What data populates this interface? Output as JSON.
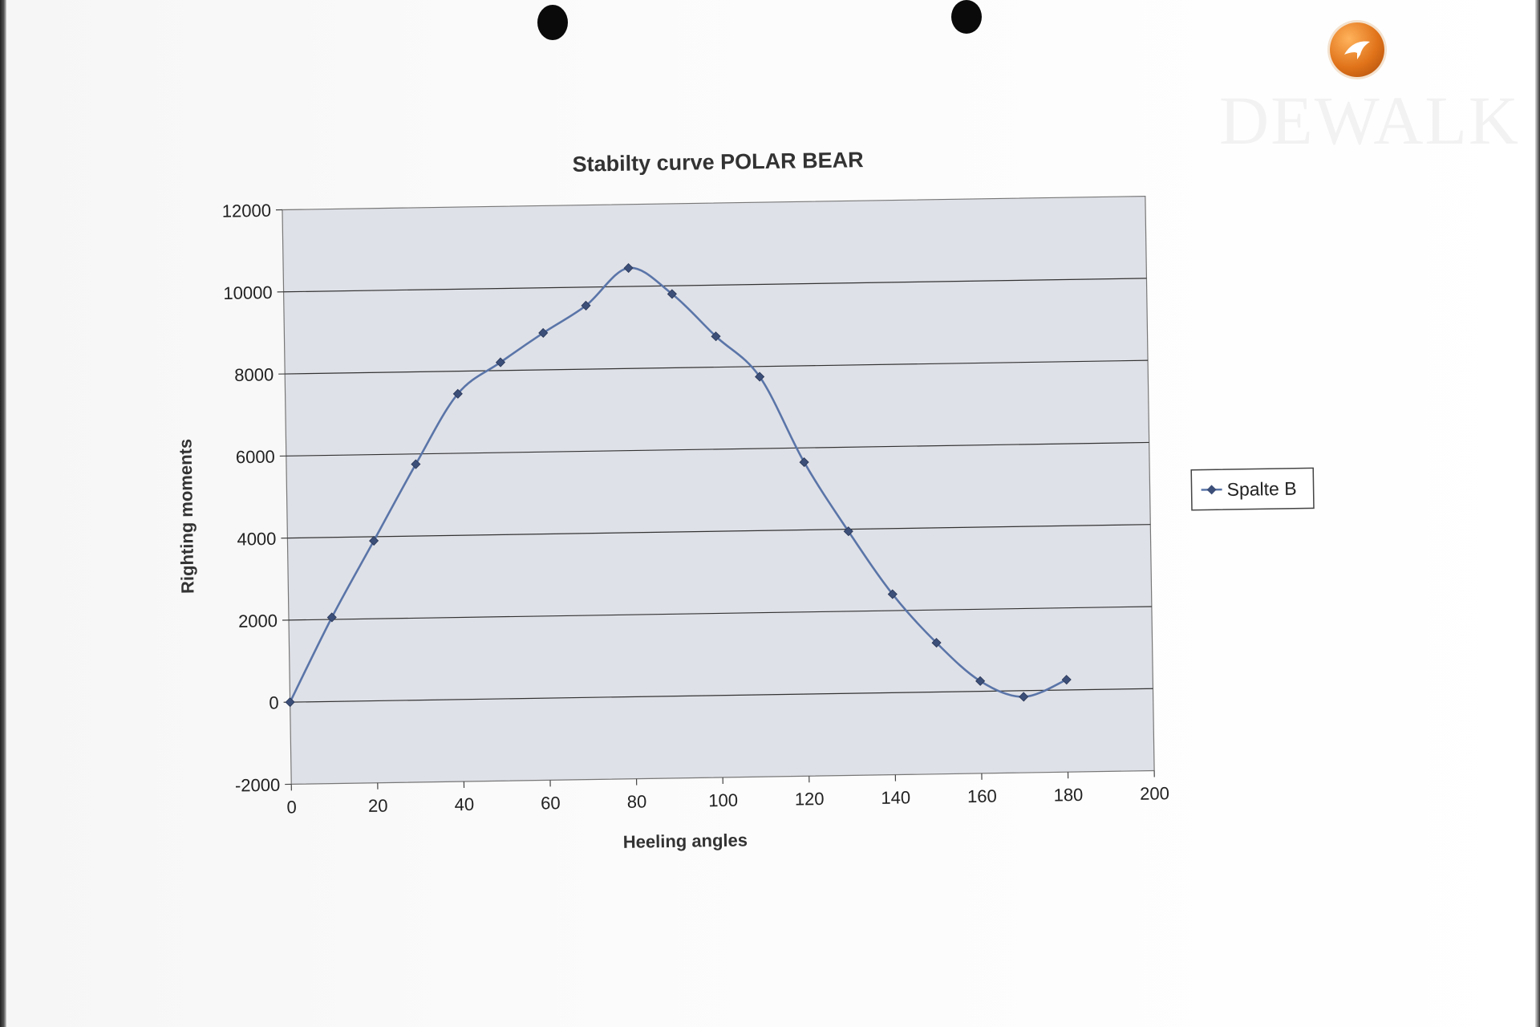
{
  "colors": {
    "plot_area": "#dfe1e8",
    "series_line": "#5a75a8",
    "marker": "#3c4f78",
    "gridline": "#333333",
    "logo_accent": "#e0731a"
  },
  "logo": {
    "icon": "bird-logo-icon",
    "watermark_text": "DEWALK"
  },
  "chart_data": {
    "type": "line",
    "title": "Stabilty curve POLAR BEAR",
    "xlabel": "Heeling angles",
    "ylabel": "Righting moments",
    "xlim": [
      0,
      200
    ],
    "ylim": [
      -2000,
      12000
    ],
    "xticks": [
      "0",
      "20",
      "40",
      "60",
      "80",
      "100",
      "120",
      "140",
      "160",
      "180",
      "200"
    ],
    "yticks": [
      "12000",
      "10000",
      "8000",
      "6000",
      "4000",
      "2000",
      "0",
      "-2000"
    ],
    "grid": true,
    "legend_position": "right",
    "smooth": true,
    "marker": "diamond",
    "series": [
      {
        "name": "Spalte B",
        "x": [
          0,
          10,
          20,
          30,
          40,
          50,
          60,
          70,
          80,
          90,
          100,
          110,
          120,
          130,
          140,
          150,
          160,
          170,
          180
        ],
        "values": [
          0,
          2050,
          3900,
          5750,
          7450,
          8200,
          8900,
          9550,
          10450,
          9800,
          8750,
          7750,
          5650,
          3950,
          2400,
          1200,
          250,
          -150,
          250
        ]
      }
    ]
  }
}
